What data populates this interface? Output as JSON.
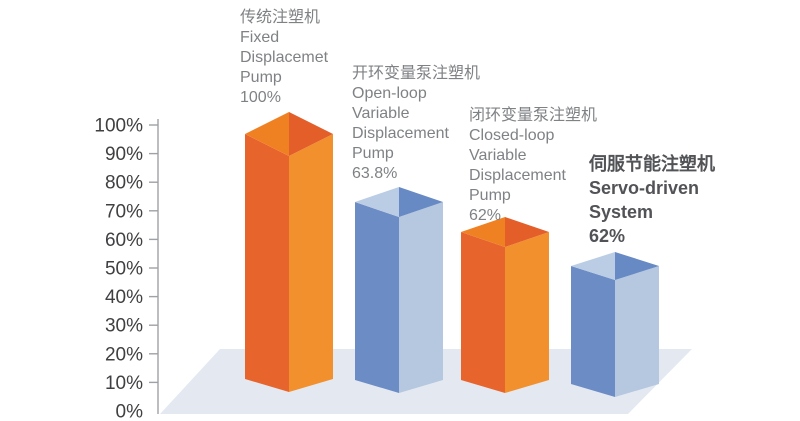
{
  "chart_data": {
    "type": "bar",
    "title": "",
    "xlabel": "",
    "ylabel": "",
    "ylim": [
      0,
      100
    ],
    "yticks": [
      "100%",
      "90%",
      "80%",
      "70%",
      "60%",
      "50%",
      "40%",
      "30%",
      "20%",
      "10%",
      "0%"
    ],
    "grid": false,
    "legend": null,
    "style": "3d-perspective-bars-on-floor",
    "categories": [
      {
        "name_zh": "传统注塑机",
        "name_en": "Fixed Displacemet Pump",
        "value": 100,
        "value_label": "100%",
        "color": "orange",
        "emphasis": false
      },
      {
        "name_zh": "开环变量泵注塑机",
        "name_en": "Open-loop Variable Displacement Pump",
        "value": 63.8,
        "value_label": "63.8%",
        "color": "blue",
        "emphasis": false
      },
      {
        "name_zh": "闭环变量泵注塑机",
        "name_en": "Closed-loop Variable Displacement Pump",
        "value": 62,
        "value_label": "62%",
        "color": "orange",
        "emphasis": false
      },
      {
        "name_zh": "伺服节能注塑机",
        "name_en": "Servo-driven System",
        "value": 62,
        "value_label": "62%",
        "color": "blue",
        "emphasis": true
      }
    ],
    "values": [
      100,
      63.8,
      62,
      62
    ]
  },
  "labels": [
    {
      "lines": [
        "传统注塑机",
        "Fixed",
        "Displacemet",
        "Pump",
        "100%"
      ]
    },
    {
      "lines": [
        "开环变量泵注塑机",
        "Open-loop",
        "Variable",
        "Displacement",
        "Pump",
        "63.8%"
      ]
    },
    {
      "lines": [
        "闭环变量泵注塑机",
        "Closed-loop",
        "Variable",
        "Displacement",
        "Pump",
        "62%"
      ]
    },
    {
      "lines": [
        "伺服节能注塑机",
        "Servo-driven",
        "System",
        "62%"
      ]
    }
  ],
  "colors": {
    "orange_left_face": "#E8642D",
    "orange_right_face": "#F2902E",
    "orange_top_left": "#F08122",
    "orange_top_right": "#E45E29",
    "blue_left_face": "#6C8CC6",
    "blue_right_face": "#B5C8DF",
    "blue_top_left": "#BACDE4",
    "blue_top_right": "#6789C4",
    "floor": "#E4E9F1",
    "axis": "#9EA1A6",
    "tick_text": "#404043",
    "label_text": "#7F8285",
    "label_text_emphasis": "#525357",
    "background": "#FFFFFF"
  }
}
